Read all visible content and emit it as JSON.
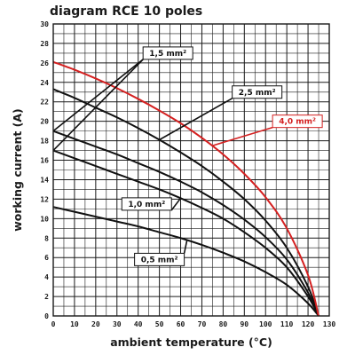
{
  "chart_data": {
    "type": "line",
    "title": "diagram RCE 10 poles",
    "xlabel": "ambient temperature (°C)",
    "ylabel": "working current (A)",
    "xlim": [
      0,
      130
    ],
    "ylim": [
      0,
      30
    ],
    "xticks": [
      "0",
      "10",
      "20",
      "30",
      "40",
      "50",
      "60",
      "70",
      "80",
      "90",
      "100",
      "110",
      "120",
      "130"
    ],
    "yticks": [
      "0",
      "2",
      "4",
      "6",
      "8",
      "10",
      "12",
      "14",
      "16",
      "18",
      "20",
      "22",
      "24",
      "26",
      "28",
      "30"
    ],
    "grid": true,
    "colors": {
      "default": "#111111",
      "highlight": "#d42020",
      "grid": "#1a1a1a"
    },
    "series": [
      {
        "name": "0,5 mm²",
        "color": "#111111",
        "x": [
          0,
          10,
          20,
          30,
          40,
          50,
          60,
          70,
          80,
          90,
          100,
          110,
          120,
          125
        ],
        "y": [
          11.2,
          10.7,
          10.2,
          9.7,
          9.2,
          8.6,
          8.0,
          7.3,
          6.5,
          5.6,
          4.5,
          3.2,
          1.3,
          0
        ]
      },
      {
        "name": "1,0 mm²",
        "color": "#111111",
        "x": [
          0,
          10,
          20,
          30,
          40,
          50,
          60,
          70,
          80,
          90,
          100,
          110,
          120,
          125
        ],
        "y": [
          17.0,
          16.2,
          15.4,
          14.6,
          13.8,
          13.0,
          12.1,
          11.1,
          10.0,
          8.6,
          7.0,
          5.0,
          2.0,
          0
        ]
      },
      {
        "name": "1,5 mm²",
        "color": "#111111",
        "x": [
          0,
          10,
          20,
          30,
          40,
          50,
          60,
          70,
          80,
          90,
          100,
          110,
          120,
          125
        ],
        "y": [
          19.0,
          18.2,
          17.4,
          16.6,
          15.7,
          14.8,
          13.8,
          12.7,
          11.4,
          9.9,
          8.1,
          5.8,
          2.4,
          0
        ]
      },
      {
        "name": "2,5 mm²",
        "color": "#111111",
        "x": [
          0,
          10,
          20,
          30,
          40,
          50,
          60,
          70,
          80,
          90,
          100,
          110,
          120,
          125
        ],
        "y": [
          23.3,
          22.4,
          21.4,
          20.4,
          19.3,
          18.1,
          16.8,
          15.4,
          13.8,
          12.0,
          9.8,
          7.0,
          3.0,
          0
        ]
      },
      {
        "name": "4,0 mm²",
        "color": "#d42020",
        "x": [
          0,
          10,
          20,
          30,
          40,
          50,
          60,
          70,
          80,
          90,
          100,
          110,
          120,
          125
        ],
        "y": [
          26.1,
          25.3,
          24.4,
          23.4,
          22.3,
          21.1,
          19.8,
          18.3,
          16.6,
          14.6,
          12.2,
          9.0,
          4.2,
          0
        ]
      }
    ],
    "annotations": [
      {
        "text": "1,5 mm²",
        "series": "1,5 mm²",
        "color": "#111111",
        "box_at": [
          54,
          27
        ],
        "pointers": [
          [
            0,
            19.0
          ],
          [
            0,
            19.0
          ]
        ]
      },
      {
        "text": "2,5 mm²",
        "series": "2,5 mm²",
        "color": "#111111",
        "box_at": [
          96,
          23
        ],
        "pointers": [
          [
            50,
            18.1
          ]
        ]
      },
      {
        "text": "4,0 mm²",
        "series": "4,0 mm²",
        "color": "#d42020",
        "box_at": [
          115,
          20
        ],
        "pointers": [
          [
            75,
            17.5
          ]
        ]
      },
      {
        "text": "1,0 mm²",
        "series": "1,0 mm²",
        "color": "#111111",
        "box_at": [
          44,
          11.5
        ],
        "pointers": [
          [
            60,
            12.1
          ]
        ]
      },
      {
        "text": "0,5 mm²",
        "series": "0,5 mm²",
        "color": "#111111",
        "box_at": [
          50,
          5.8
        ],
        "pointers": [
          [
            63,
            7.8
          ]
        ]
      }
    ]
  }
}
